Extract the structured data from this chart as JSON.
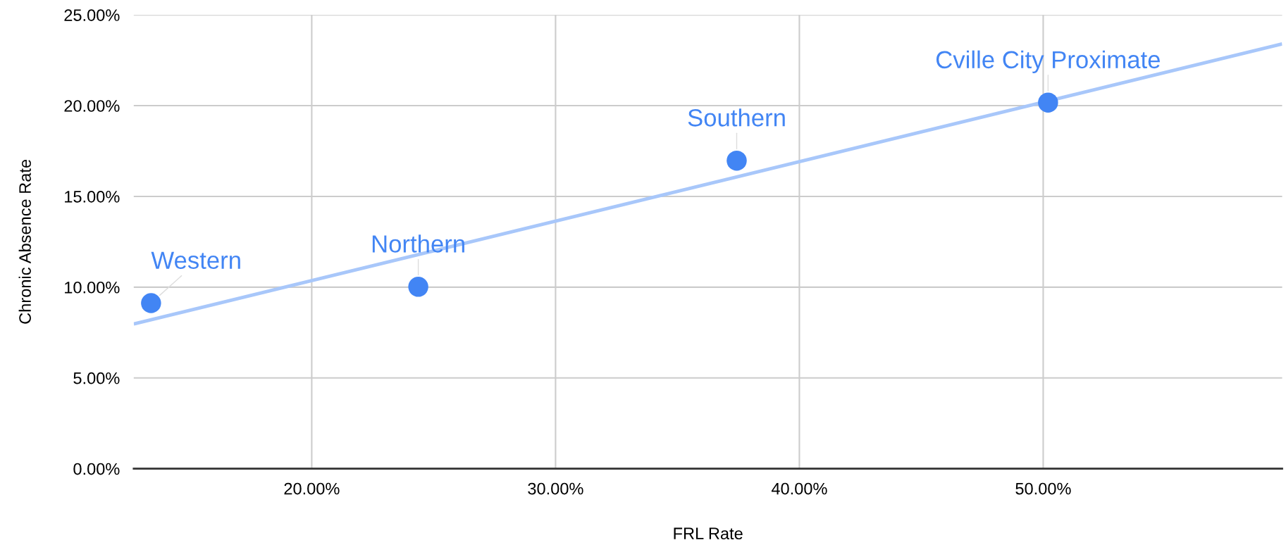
{
  "chart_data": {
    "type": "scatter",
    "xlabel": "FRL Rate",
    "ylabel": "Chronic Absence Rate",
    "series": [
      {
        "color": "#4285f4",
        "marker": "circle",
        "x": [
          13.41,
          24.37,
          37.43,
          50.2
        ],
        "values": [
          9.12,
          10.02,
          16.97,
          20.17
        ]
      },
      {
        "type": "line",
        "marker": "none",
        "color": "#a8c7fa",
        "x": [
          12.7,
          59.8
        ],
        "values": [
          7.97,
          23.4
        ]
      }
    ],
    "annotations": [
      {
        "text": "Western",
        "x": 13.41,
        "y": 9.12
      },
      {
        "text": "Northern",
        "x": 24.37,
        "y": 10.02
      },
      {
        "text": "Southern",
        "x": 37.43,
        "y": 16.97
      },
      {
        "text": "Cville City Proximate",
        "x": 50.2,
        "y": 20.17
      }
    ],
    "xlim": [
      12.7,
      59.8
    ],
    "ylim": [
      0,
      25
    ],
    "xticks": [
      {
        "value": 20,
        "label": "20.00%"
      },
      {
        "value": 30,
        "label": "30.00%"
      },
      {
        "value": 40,
        "label": "40.00%"
      },
      {
        "value": 50,
        "label": "50.00%"
      }
    ],
    "yticks": [
      {
        "value": 0,
        "label": "0.00%"
      },
      {
        "value": 5,
        "label": "5.00%"
      },
      {
        "value": 10,
        "label": "10.00%"
      },
      {
        "value": 15,
        "label": "15.00%"
      },
      {
        "value": 20,
        "label": "20.00%"
      },
      {
        "value": 25,
        "label": "25.00%"
      }
    ],
    "grid": true
  }
}
